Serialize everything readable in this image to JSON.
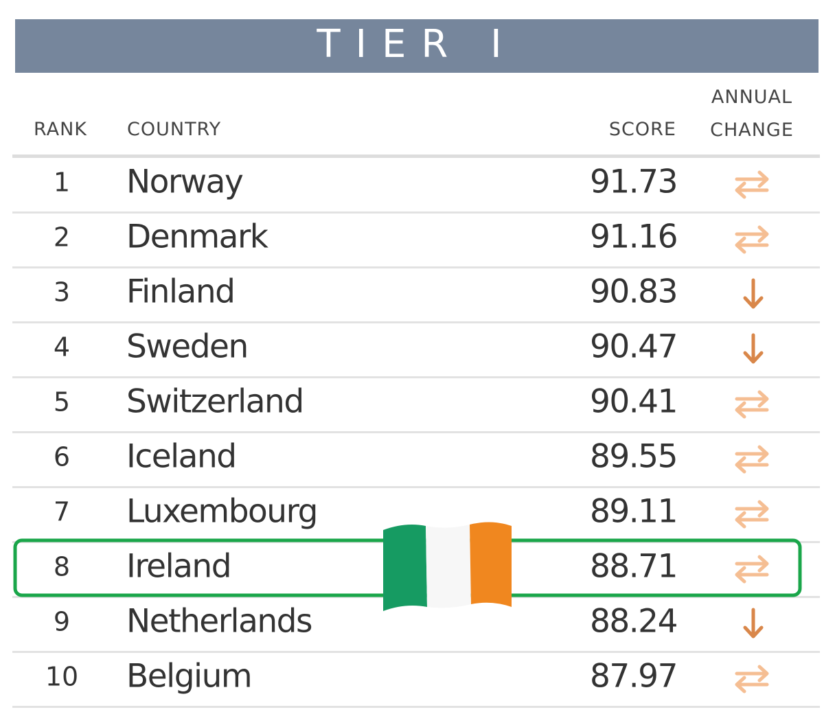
{
  "header": {
    "title": "TIER I"
  },
  "table": {
    "columns": [
      "RANK",
      "COUNTRY",
      "SCORE",
      "ANNUAL CHANGE"
    ],
    "rows": [
      [
        1,
        "Norway",
        91.73
      ],
      [
        2,
        "Denmark",
        91.16
      ],
      [
        3,
        "Finland",
        90.83
      ],
      [
        4,
        "Sweden",
        90.47
      ],
      [
        5,
        "Switzerland",
        90.41
      ],
      [
        6,
        "Iceland",
        89.55
      ],
      [
        7,
        "Luxembourg",
        89.11
      ],
      [
        8,
        "Ireland",
        88.71
      ],
      [
        9,
        "Netherlands",
        88.24
      ],
      [
        10,
        "Belgium",
        87.97
      ]
    ]
  }
}
